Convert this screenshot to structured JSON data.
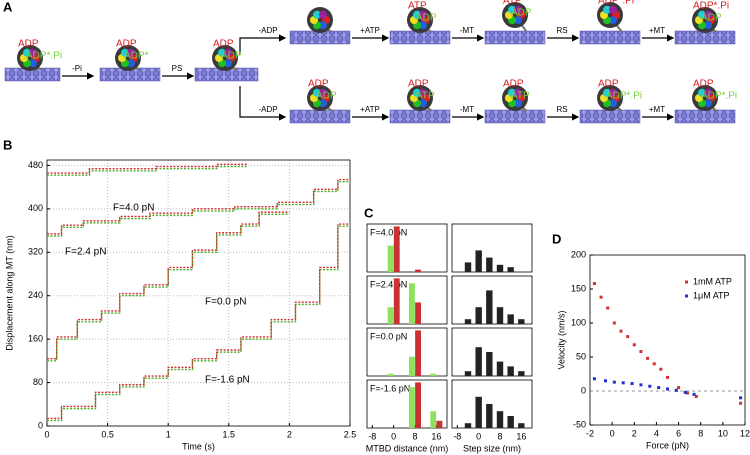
{
  "panel_labels": [
    "A",
    "B",
    "C",
    "D"
  ],
  "diagram": {
    "left_states": [
      {
        "red": "ADP",
        "green": "ADP*.Pi"
      },
      {
        "red": "ADP",
        "green": "ADP*"
      },
      {
        "red": "ADP",
        "green": "ADP"
      }
    ],
    "left_steps": [
      "-Pi",
      "PS"
    ],
    "top_states": [
      {
        "red": "ATP",
        "green": "ADP"
      },
      {
        "red": "ATP",
        "green": "ADP"
      },
      {
        "red": "ADP*.Pi"
      },
      {
        "red": "ADP*.Pi",
        "green": "ADP"
      }
    ],
    "top_steps": [
      "-ADP",
      "+ATP",
      "-MT",
      "RS",
      "+MT"
    ],
    "bottom_states": [
      {
        "red": "ADP",
        "green": "ADP"
      },
      {
        "red": "ADP",
        "green": "ATP"
      },
      {
        "red": "ADP",
        "green": "ATP"
      },
      {
        "red": "ADP",
        "green": "ADP*.Pi"
      },
      {
        "red": "ADP",
        "green": "ADP*.Pi"
      }
    ],
    "bottom_steps": [
      "-ADP",
      "+ATP",
      "-MT",
      "RS",
      "+MT"
    ]
  },
  "chart_data": [
    {
      "type": "line",
      "xlabel": "Time (s)",
      "ylabel": "Displacement along MT (nm)",
      "xlim": [
        0,
        2.5
      ],
      "ylim": [
        0,
        490
      ],
      "xticks": [
        0,
        0.5,
        1,
        1.5,
        2,
        2.5
      ],
      "yticks": [
        0,
        80,
        160,
        240,
        320,
        400,
        480
      ],
      "grid": true,
      "annotations": [
        "F=4.0 pN",
        "F=2.4 pN",
        "F=0.0 pN",
        "F=-1.6 pN"
      ],
      "series": [
        {
          "color": "#4caf2a",
          "x": [
            0,
            0.35,
            0.35,
            0.9,
            0.9,
            1.4,
            1.4,
            1.65
          ],
          "values": [
            462,
            462,
            470,
            470,
            474,
            474,
            478,
            478
          ]
        },
        {
          "color": "#d03030",
          "x": [
            0,
            0.35,
            0.35,
            0.9,
            0.9,
            1.4,
            1.4,
            1.65
          ],
          "values": [
            466,
            466,
            474,
            474,
            478,
            478,
            482,
            482
          ]
        },
        {
          "color": "#4caf2a",
          "x": [
            0,
            0.12,
            0.12,
            0.3,
            0.3,
            0.6,
            0.6,
            0.85,
            0.85,
            1.2,
            1.2,
            1.55,
            1.55,
            1.9,
            1.9,
            2.2,
            2.2,
            2.4,
            2.4,
            2.5
          ],
          "values": [
            350,
            350,
            366,
            366,
            374,
            374,
            382,
            382,
            388,
            388,
            396,
            396,
            400,
            400,
            408,
            408,
            432,
            432,
            450,
            450
          ]
        },
        {
          "color": "#d03030",
          "x": [
            0,
            0.12,
            0.12,
            0.3,
            0.3,
            0.6,
            0.6,
            0.85,
            0.85,
            1.2,
            1.2,
            1.55,
            1.55,
            1.9,
            1.9,
            2.2,
            2.2,
            2.4,
            2.4,
            2.5
          ],
          "values": [
            354,
            354,
            370,
            370,
            378,
            378,
            386,
            386,
            392,
            392,
            400,
            400,
            404,
            404,
            412,
            412,
            436,
            436,
            454,
            454
          ]
        },
        {
          "color": "#4caf2a",
          "x": [
            0,
            0.08,
            0.08,
            0.25,
            0.25,
            0.45,
            0.45,
            0.6,
            0.6,
            0.8,
            0.8,
            1.0,
            1.0,
            1.2,
            1.2,
            1.4,
            1.4,
            1.6,
            1.6,
            1.75,
            1.75,
            2.0
          ],
          "values": [
            120,
            120,
            160,
            160,
            192,
            192,
            208,
            208,
            240,
            240,
            256,
            256,
            288,
            288,
            320,
            320,
            352,
            352,
            368,
            368,
            390,
            390
          ]
        },
        {
          "color": "#d03030",
          "x": [
            0,
            0.08,
            0.08,
            0.25,
            0.25,
            0.45,
            0.45,
            0.6,
            0.6,
            0.8,
            0.8,
            1.0,
            1.0,
            1.2,
            1.2,
            1.4,
            1.4,
            1.6,
            1.6,
            1.75,
            1.75,
            2.0
          ],
          "values": [
            124,
            124,
            164,
            164,
            196,
            196,
            212,
            212,
            244,
            244,
            260,
            260,
            292,
            292,
            324,
            324,
            356,
            356,
            372,
            372,
            394,
            394
          ]
        },
        {
          "color": "#4caf2a",
          "x": [
            0,
            0.12,
            0.12,
            0.4,
            0.4,
            0.6,
            0.6,
            0.8,
            0.8,
            1.0,
            1.0,
            1.2,
            1.2,
            1.4,
            1.4,
            1.6,
            1.6,
            1.85,
            1.85,
            2.05,
            2.05,
            2.25,
            2.25,
            2.4,
            2.4,
            2.5
          ],
          "values": [
            10,
            10,
            32,
            32,
            58,
            58,
            72,
            72,
            88,
            88,
            104,
            104,
            120,
            120,
            136,
            136,
            160,
            160,
            192,
            192,
            224,
            224,
            288,
            288,
            368,
            368
          ]
        },
        {
          "color": "#d03030",
          "x": [
            0,
            0.12,
            0.12,
            0.4,
            0.4,
            0.6,
            0.6,
            0.8,
            0.8,
            1.0,
            1.0,
            1.2,
            1.2,
            1.4,
            1.4,
            1.6,
            1.6,
            1.85,
            1.85,
            2.05,
            2.05,
            2.25,
            2.25,
            2.4,
            2.4,
            2.5
          ],
          "values": [
            14,
            14,
            36,
            36,
            62,
            62,
            76,
            76,
            92,
            92,
            108,
            108,
            124,
            124,
            140,
            140,
            164,
            164,
            196,
            196,
            228,
            228,
            292,
            292,
            372,
            372
          ]
        }
      ]
    },
    {
      "type": "bar",
      "label": "F=4.0 pN",
      "x": [
        0,
        8,
        16
      ],
      "xlim": [
        -10,
        20
      ],
      "ylim": [
        0,
        1
      ],
      "series": [
        {
          "color": "#8fe060",
          "values": [
            0.55,
            0,
            0
          ]
        },
        {
          "color": "#c83232",
          "values": [
            0.95,
            0.05,
            0
          ]
        }
      ]
    },
    {
      "type": "bar",
      "label": "F=2.4 pN",
      "x": [
        0,
        8,
        16
      ],
      "xlim": [
        -10,
        20
      ],
      "ylim": [
        0,
        1
      ],
      "series": [
        {
          "color": "#8fe060",
          "values": [
            0.35,
            0.85,
            0
          ]
        },
        {
          "color": "#c83232",
          "values": [
            0.95,
            0.45,
            0
          ]
        }
      ]
    },
    {
      "type": "bar",
      "label": "F=0.0 pN",
      "x": [
        0,
        8,
        16
      ],
      "xlim": [
        -10,
        20
      ],
      "ylim": [
        0,
        1
      ],
      "series": [
        {
          "color": "#8fe060",
          "values": [
            0.05,
            0.4,
            0.05
          ]
        },
        {
          "color": "#c83232",
          "values": [
            0,
            0.95,
            0
          ]
        }
      ]
    },
    {
      "type": "bar",
      "label": "F=-1.6 pN",
      "x": [
        0,
        8,
        16
      ],
      "xlim": [
        -10,
        20
      ],
      "ylim": [
        0,
        1
      ],
      "xticks": [
        -8,
        0,
        8,
        16
      ],
      "xlabel": "MTBD distance (nm)",
      "series": [
        {
          "color": "#8fe060",
          "values": [
            0,
            0.85,
            0.35
          ]
        },
        {
          "color": "#c83232",
          "values": [
            0,
            0.95,
            0.15
          ]
        }
      ]
    },
    {
      "type": "bar",
      "x": [
        -4,
        0,
        4,
        8,
        12,
        16
      ],
      "xlim": [
        -10,
        20
      ],
      "ylim": [
        0,
        1
      ],
      "color": "#222222",
      "values": [
        0.2,
        0.45,
        0.3,
        0.15,
        0.1,
        0
      ]
    },
    {
      "type": "bar",
      "x": [
        -4,
        0,
        4,
        8,
        12,
        16
      ],
      "xlim": [
        -10,
        20
      ],
      "ylim": [
        0,
        1
      ],
      "color": "#222222",
      "values": [
        0.1,
        0.35,
        0.7,
        0.35,
        0.2,
        0.1
      ]
    },
    {
      "type": "bar",
      "x": [
        -4,
        0,
        4,
        8,
        12,
        16
      ],
      "xlim": [
        -10,
        20
      ],
      "ylim": [
        0,
        1
      ],
      "color": "#222222",
      "values": [
        0.1,
        0.6,
        0.5,
        0.3,
        0.2,
        0.1
      ]
    },
    {
      "type": "bar",
      "x": [
        -4,
        0,
        4,
        8,
        12,
        16
      ],
      "xlim": [
        -10,
        20
      ],
      "ylim": [
        0,
        1
      ],
      "color": "#222222",
      "values": [
        0.1,
        0.65,
        0.5,
        0.35,
        0.25,
        0.1
      ],
      "xticks": [
        -8,
        0,
        8,
        16
      ],
      "xlabel": "Step size (nm)"
    },
    {
      "type": "scatter",
      "xlabel": "Force (pN)",
      "ylabel": "Velocity (nm/s)",
      "xlim": [
        -2,
        12
      ],
      "ylim": [
        -50,
        200
      ],
      "xticks": [
        -2,
        0,
        2,
        4,
        6,
        8,
        10,
        12
      ],
      "yticks": [
        -50,
        0,
        50,
        100,
        150,
        200
      ],
      "reference_line": 0,
      "legend": "upper right",
      "series": [
        {
          "name": "1mM ATP",
          "color": "#d03030",
          "x": [
            -1.6,
            -1,
            -0.4,
            0.2,
            0.8,
            1.4,
            2,
            2.6,
            3.2,
            3.8,
            4.4,
            5,
            6,
            6.8,
            7.6,
            11.6
          ],
          "values": [
            158,
            138,
            122,
            100,
            88,
            80,
            68,
            58,
            48,
            40,
            32,
            20,
            5,
            -3,
            -8,
            -18
          ]
        },
        {
          "name": "1μM ATP",
          "color": "#2030d0",
          "x": [
            -1.6,
            -0.6,
            0.2,
            1,
            1.8,
            2.6,
            3.4,
            4.2,
            5,
            5.8,
            6.6,
            7.4,
            11.6
          ],
          "values": [
            18,
            15,
            13,
            12,
            11,
            9,
            7,
            5,
            3,
            1,
            -2,
            -5,
            -10
          ]
        }
      ]
    }
  ]
}
